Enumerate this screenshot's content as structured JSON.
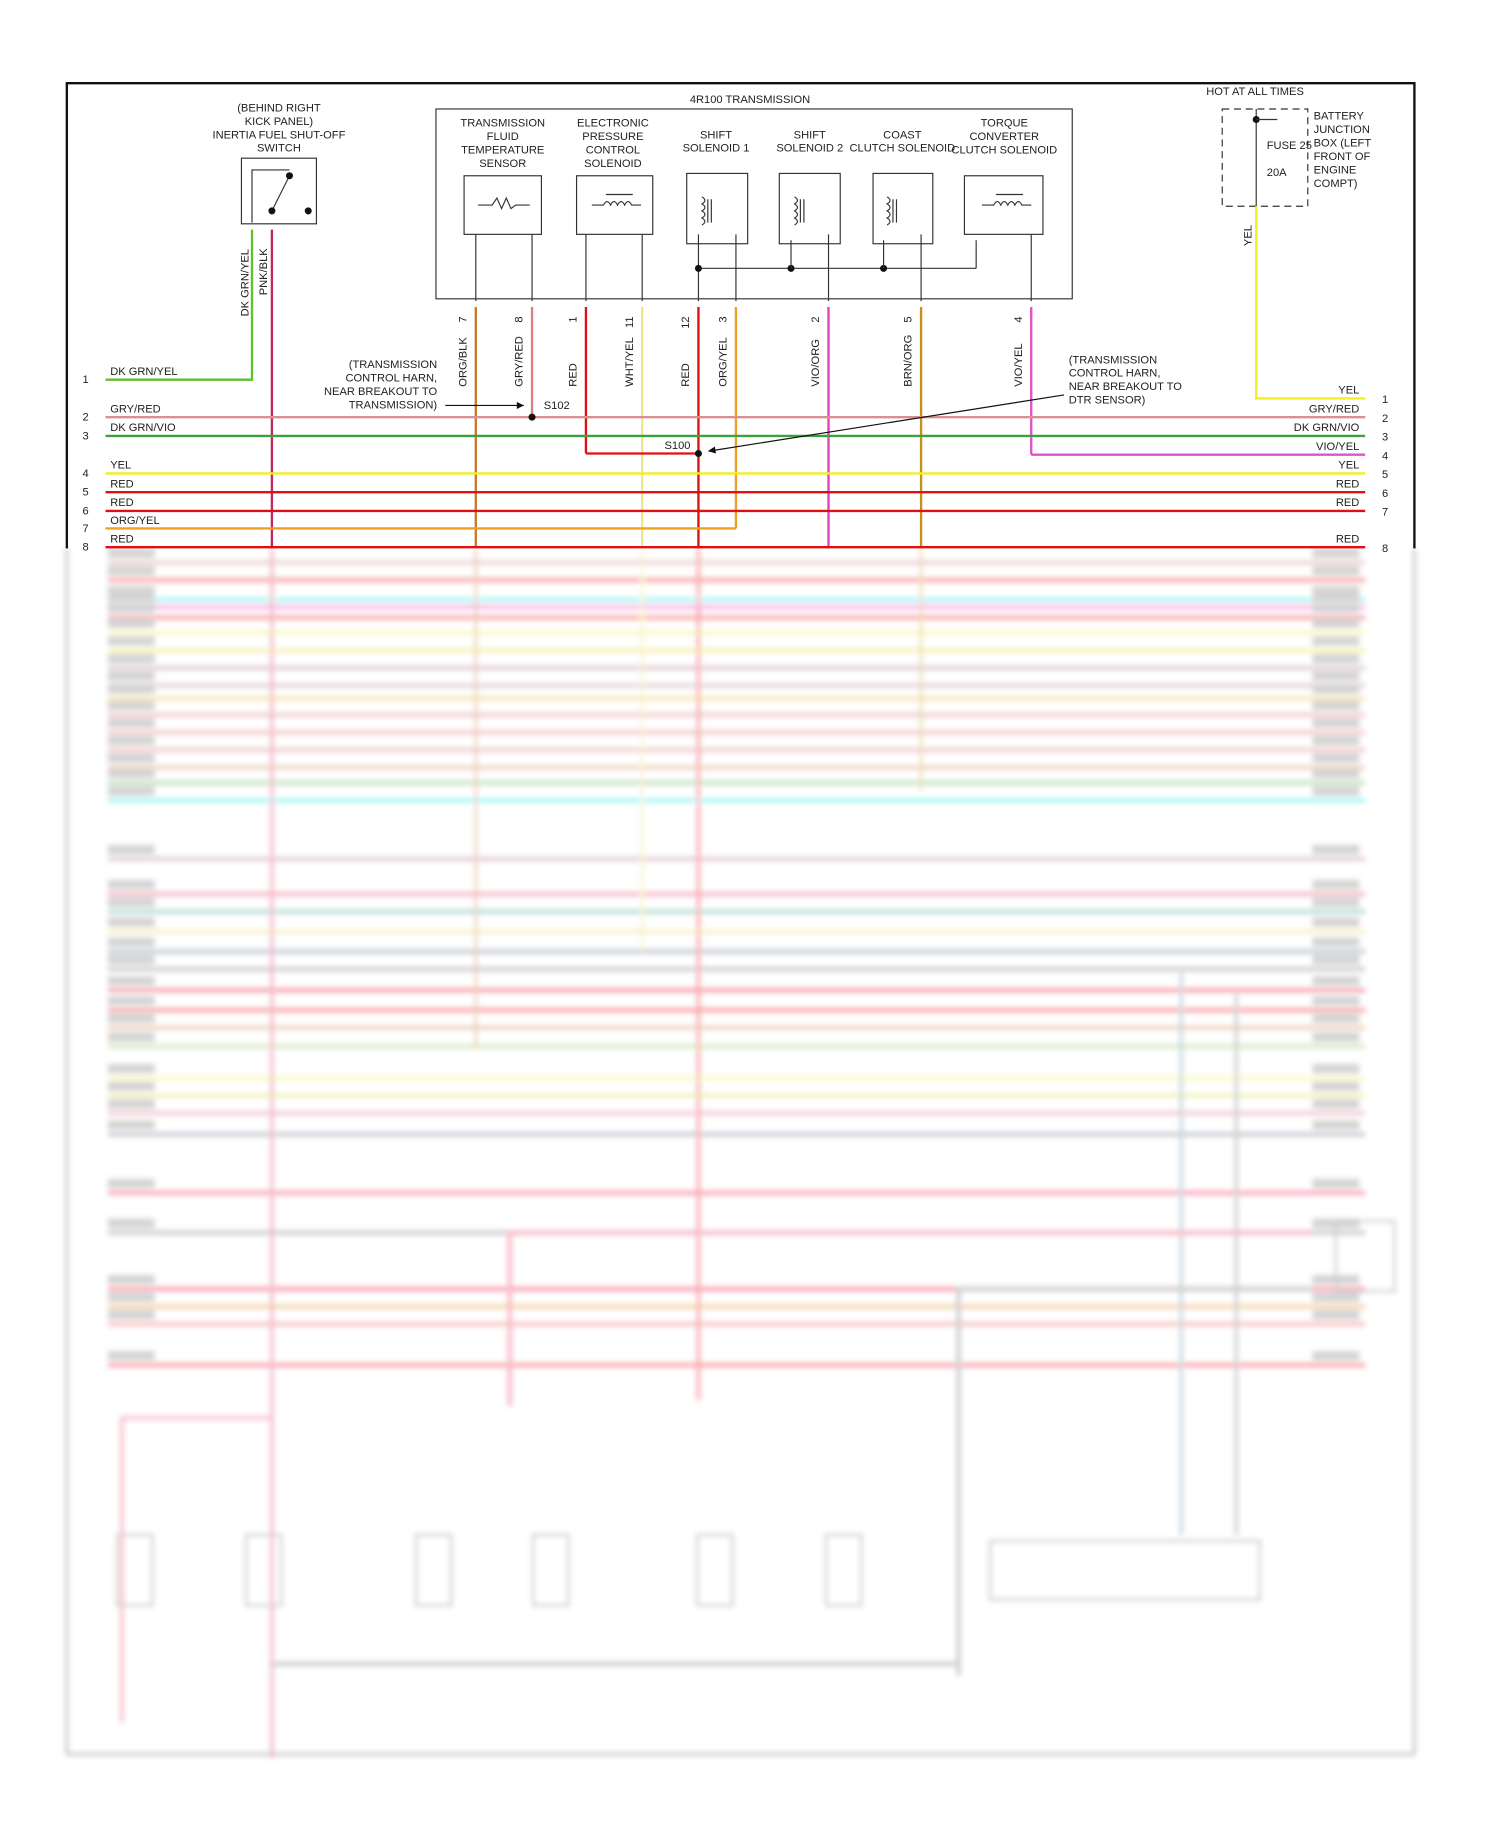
{
  "transmission": {
    "title": "4R100 TRANSMISSION",
    "components": [
      {
        "name": "tft-sensor",
        "lines": [
          "TRANSMISSION",
          "FLUID",
          "TEMPERATURE",
          "SENSOR"
        ]
      },
      {
        "name": "epc-solenoid",
        "lines": [
          "ELECTRONIC",
          "PRESSURE",
          "CONTROL",
          "SOLENOID"
        ]
      },
      {
        "name": "shift-solenoid-1",
        "lines": [
          "SHIFT",
          "SOLENOID 1"
        ]
      },
      {
        "name": "shift-solenoid-2",
        "lines": [
          "SHIFT",
          "SOLENOID 2"
        ]
      },
      {
        "name": "coast-clutch-solenoid",
        "lines": [
          "COAST",
          "CLUTCH SOLENOID"
        ]
      },
      {
        "name": "tcc-solenoid",
        "lines": [
          "TORQUE",
          "CONVERTER",
          "CLUTCH SOLENOID"
        ]
      }
    ],
    "pins": [
      {
        "pin": "7",
        "wire": "ORG/BLK",
        "color": "#c8782a"
      },
      {
        "pin": "8",
        "wire": "GRY/RED",
        "color": "#d88080"
      },
      {
        "pin": "1",
        "wire": "RED",
        "color": "#e01010"
      },
      {
        "pin": "11",
        "wire": "WHT/YEL",
        "color": "#f2e68a"
      },
      {
        "pin": "12",
        "wire": "RED",
        "color": "#e01010"
      },
      {
        "pin": "3",
        "wire": "ORG/YEL",
        "color": "#f0a020"
      },
      {
        "pin": "2",
        "wire": "VIO/ORG",
        "color": "#e040c0"
      },
      {
        "pin": "5",
        "wire": "BRN/ORG",
        "color": "#c8901a"
      },
      {
        "pin": "4",
        "wire": "VIO/YEL",
        "color": "#e050c8"
      }
    ]
  },
  "inertia_switch": {
    "lines": [
      "(BEHIND RIGHT",
      "KICK PANEL)",
      "INERTIA FUEL SHUT-OFF",
      "SWITCH"
    ],
    "wires": [
      {
        "wire": "DK GRN/YEL",
        "color": "#60c030"
      },
      {
        "wire": "PNK/BLK",
        "color": "#c02860"
      }
    ]
  },
  "fuse_box": {
    "hot_label": "HOT AT ALL TIMES",
    "fuse_label": "FUSE 25",
    "rating": "20A",
    "location_lines": [
      "BATTERY",
      "JUNCTION",
      "BOX (LEFT",
      "FRONT OF",
      "ENGINE",
      "COMPT)"
    ],
    "wire": "YEL",
    "color": "#f0f020"
  },
  "splices": {
    "s102": {
      "label": "S102",
      "note_lines": [
        "(TRANSMISSION",
        "CONTROL HARN,",
        "NEAR BREAKOUT TO",
        "TRANSMISSION)"
      ]
    },
    "s100": {
      "label": "S100",
      "note_lines": [
        "(TRANSMISSION",
        "CONTROL HARN,",
        "NEAR BREAKOUT TO",
        "DTR SENSOR)"
      ]
    }
  },
  "left_rows": [
    {
      "num": "1",
      "label": "DK GRN/YEL",
      "color": "#60c030"
    },
    {
      "num": "2",
      "label": "GRY/RED",
      "color": "#d89090"
    },
    {
      "num": "3",
      "label": "DK GRN/VIO",
      "color": "#40a040"
    },
    {
      "num": "4",
      "label": "YEL",
      "color": "#f0f020"
    },
    {
      "num": "5",
      "label": "RED",
      "color": "#e01010"
    },
    {
      "num": "6",
      "label": "RED",
      "color": "#e01010"
    },
    {
      "num": "7",
      "label": "ORG/YEL",
      "color": "#f0a020"
    },
    {
      "num": "8",
      "label": "RED",
      "color": "#e01010"
    }
  ],
  "right_rows": [
    {
      "num": "1",
      "label": "YEL"
    },
    {
      "num": "2",
      "label": "GRY/RED"
    },
    {
      "num": "3",
      "label": "DK GRN/VIO"
    },
    {
      "num": "4",
      "label": "VIO/YEL"
    },
    {
      "num": "5",
      "label": "YEL"
    },
    {
      "num": "6",
      "label": "RED"
    },
    {
      "num": "7",
      "label": "RED"
    },
    {
      "num": "8",
      "label": "RED"
    }
  ],
  "blurred_wire_colors": [
    "#d0a0a0",
    "#f04040",
    "#30e8e8",
    "#f060c0",
    "#f04040",
    "#f0f080",
    "#f0e060",
    "#c090a0",
    "#c8a0b0",
    "#f0c860",
    "#e09090",
    "#e09090",
    "#e09090",
    "#e0a080",
    "#80c080",
    "#30e8e8",
    "#c090a0",
    "#f06080",
    "#60b0a0",
    "#f0e080",
    "#8090a0",
    "#909090",
    "#f03040",
    "#f03040",
    "#d8a070",
    "#a8d080",
    "#f0f080",
    "#e0e070",
    "#e090a0",
    "#8090a0",
    "#f04070",
    "#909090",
    "#f03050",
    "#e8a040",
    "#f08080",
    "#f04050"
  ]
}
